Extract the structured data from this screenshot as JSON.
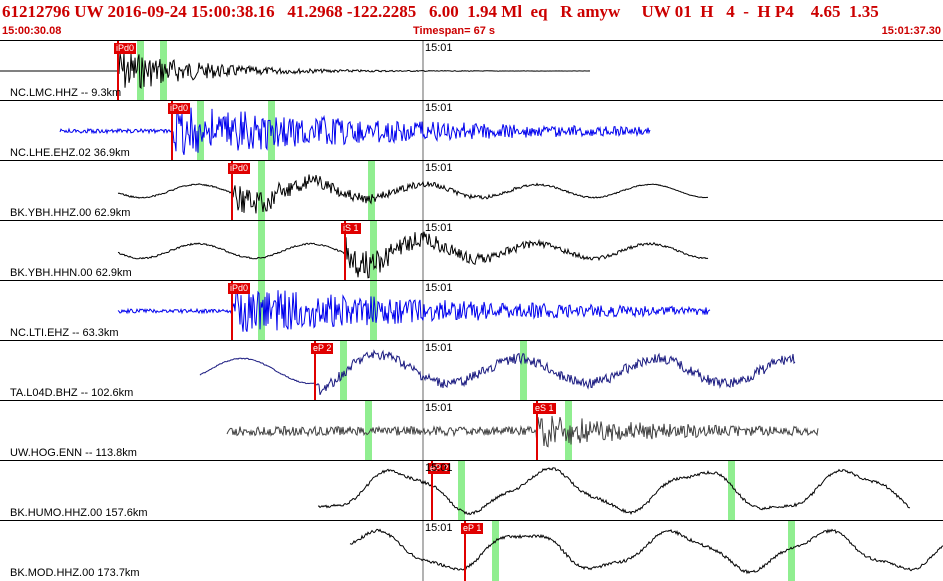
{
  "header": {
    "title": "61212796 UW 2016-09-24 15:00:38.16   41.2968 -122.2285   6.00  1.94 Ml  eq   R amyw     UW 01  H   4  -  H P4    4.65  1.35",
    "start_time": "15:00:30.08",
    "timespan": "Timespan=  67 s",
    "end_time": "15:01:37.30"
  },
  "colors": {
    "title": "#cc0000",
    "pick": "#e00000",
    "phase_window": "#90ee90",
    "trace_black": "#000000",
    "trace_blue": "#0000ee",
    "trace_navy": "#1a1a80",
    "trace_dark": "#404040"
  },
  "tracks": [
    {
      "label": "NC.LMC.HHZ -- 9.3km",
      "time_label": "15:01",
      "pick": "iPd0",
      "color": "black",
      "icon": "trace-line"
    },
    {
      "label": "NC.LHE.EHZ.02 36.9km",
      "time_label": "15:01",
      "pick": "iPd0",
      "color": "blue",
      "icon": "trace-line"
    },
    {
      "label": "BK.YBH.HHZ.00 62.9km",
      "time_label": "15:01",
      "pick": "iPd0",
      "color": "black",
      "icon": "trace-line"
    },
    {
      "label": "BK.YBH.HHN.00 62.9km",
      "time_label": "15:01",
      "pick": "iS 1",
      "color": "black",
      "icon": "trace-line"
    },
    {
      "label": "NC.LTI.EHZ -- 63.3km",
      "time_label": "15:01",
      "pick": "iPd0",
      "color": "blue",
      "icon": "trace-line"
    },
    {
      "label": "TA.L04D.BHZ -- 102.6km",
      "time_label": "15:01",
      "pick": "eP 2",
      "color": "navy",
      "icon": "trace-line"
    },
    {
      "label": "UW.HOG.ENN -- 113.8km",
      "time_label": "15:01",
      "pick": "eS 1",
      "color": "dark",
      "icon": "trace-line"
    },
    {
      "label": "BK.HUMO.HHZ.00 157.6km",
      "time_label": "15:01",
      "pick": "eP 2",
      "color": "black",
      "icon": "trace-line"
    },
    {
      "label": "BK.MOD.HHZ.00 173.7km",
      "time_label": "15:01",
      "pick": "eP 1",
      "color": "black",
      "icon": "trace-line"
    }
  ]
}
